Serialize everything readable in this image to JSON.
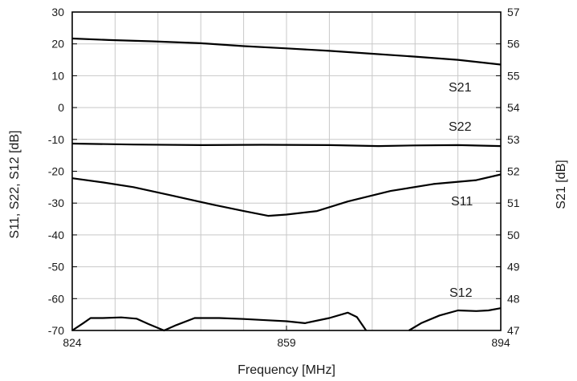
{
  "chart_data": {
    "type": "line",
    "xlabel": "Frequency [MHz]",
    "ylabel": "S11, S22, S12 [dB]",
    "y2label": "S21 [dB]",
    "xlim": [
      824,
      894
    ],
    "ylim": [
      -70,
      30
    ],
    "y2lim": [
      47,
      57
    ],
    "xticks": [
      "824",
      "859",
      "894"
    ],
    "yticks": [
      "30",
      "20",
      "10",
      "0",
      "-10",
      "-20",
      "-30",
      "-40",
      "-50",
      "-60",
      "-70"
    ],
    "y2ticks": [
      "57",
      "56",
      "55",
      "54",
      "53",
      "52",
      "51",
      "50",
      "49",
      "48",
      "47"
    ],
    "grid": true,
    "series": [
      {
        "name": "S21",
        "axis": "right",
        "x": [
          824,
          830,
          837,
          845,
          852,
          859,
          866,
          873,
          880,
          887,
          894
        ],
        "y": [
          56.17,
          56.12,
          56.08,
          56.02,
          55.93,
          55.86,
          55.78,
          55.69,
          55.6,
          55.5,
          55.35
        ]
      },
      {
        "name": "S22",
        "axis": "left",
        "x": [
          824,
          834,
          845,
          855,
          866,
          874,
          880,
          887,
          894
        ],
        "y": [
          -11.3,
          -11.6,
          -11.8,
          -11.7,
          -11.8,
          -12.1,
          -11.9,
          -11.8,
          -12.1
        ]
      },
      {
        "name": "S11",
        "axis": "left",
        "x": [
          824,
          829,
          834,
          840,
          847,
          852,
          856,
          859,
          864,
          869,
          876,
          883,
          890,
          894
        ],
        "y": [
          -22.2,
          -23.5,
          -25,
          -27.5,
          -30.5,
          -32.5,
          -34,
          -33.6,
          -32.5,
          -29.5,
          -26.2,
          -24,
          -22.8,
          -21
        ]
      },
      {
        "name": "S12",
        "axis": "left",
        "x": [
          824,
          825.8,
          827,
          829,
          832,
          834.5,
          836.5,
          839,
          841,
          844,
          848,
          852,
          856,
          859,
          862,
          866,
          869,
          870.5,
          872,
          874,
          879,
          881,
          884,
          887,
          890,
          892,
          894
        ],
        "y": [
          -70,
          -67.7,
          -66.1,
          -66.1,
          -65.9,
          -66.3,
          -68,
          -70,
          -68.3,
          -66.1,
          -66.1,
          -66.4,
          -66.8,
          -67.1,
          -67.7,
          -66.1,
          -64.4,
          -65.8,
          -70,
          null,
          -70,
          -67.7,
          -65.3,
          -63.7,
          -63.9,
          -63.7,
          -63
        ]
      }
    ],
    "annotations": [
      "S21",
      "S22",
      "S11",
      "S12"
    ]
  }
}
